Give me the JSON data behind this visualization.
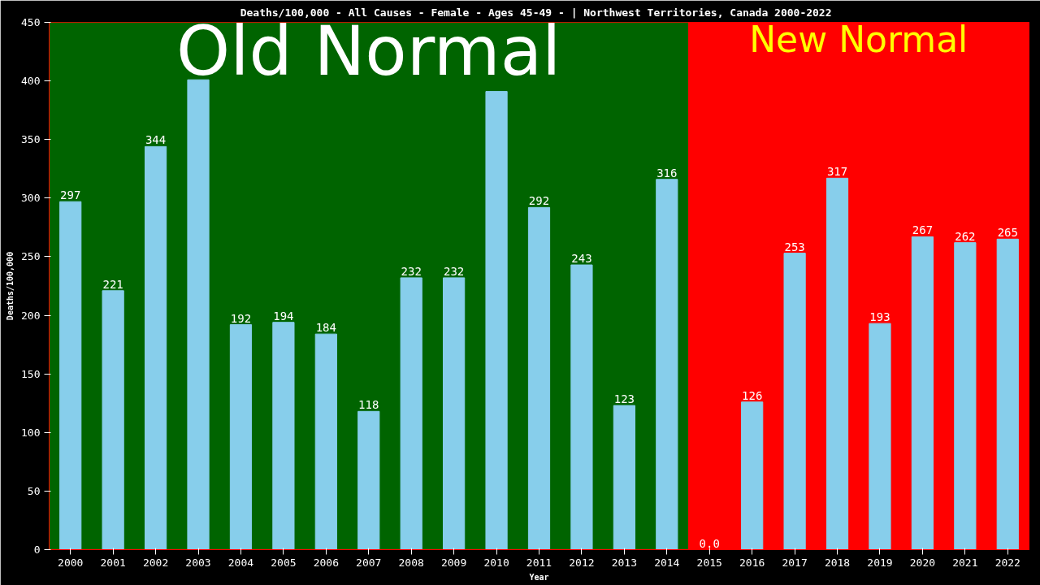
{
  "chart_data": {
    "type": "bar",
    "title": "Deaths/100,000 - All Causes - Female - Ages 45-49 -  | Northwest Territories, Canada 2000-2022",
    "xlabel": "Year",
    "ylabel": "Deaths/100,000",
    "categories": [
      "2000",
      "2001",
      "2002",
      "2003",
      "2004",
      "2005",
      "2006",
      "2007",
      "2008",
      "2009",
      "2010",
      "2011",
      "2012",
      "2013",
      "2014",
      "2015",
      "2016",
      "2017",
      "2018",
      "2019",
      "2020",
      "2021",
      "2022"
    ],
    "values": [
      297,
      221,
      344,
      401,
      192,
      194,
      184,
      118,
      232,
      232,
      391,
      292,
      243,
      123,
      316,
      0,
      126,
      253,
      317,
      193,
      267,
      262,
      265
    ],
    "value_labels": [
      "297",
      "221",
      "344",
      null,
      "192",
      "194",
      "184",
      "118",
      "232",
      "232",
      null,
      "292",
      "243",
      "123",
      "316",
      "0.0",
      "126",
      "253",
      "317",
      "193",
      "267",
      "262",
      "265"
    ],
    "color": "#87ceeb",
    "ylim": [
      0,
      450
    ],
    "yticks": [
      0,
      50,
      100,
      150,
      200,
      250,
      300,
      350,
      400,
      450
    ],
    "grid": false,
    "bands": [
      {
        "axis": "x",
        "from": "2000",
        "to": "2014",
        "label": "Old Normal",
        "color": "#006400"
      },
      {
        "axis": "x",
        "from": "2015",
        "to": "2022",
        "label": "New Normal",
        "color": "#ff0000"
      }
    ]
  }
}
